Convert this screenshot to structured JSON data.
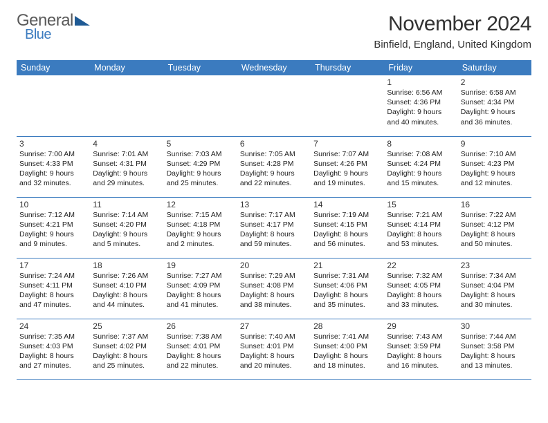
{
  "header": {
    "logo": {
      "word1": "General",
      "word2": "Blue",
      "word1_color": "#5a5a5a",
      "word2_color": "#3b7bbf",
      "triangle_color": "#1f5a94"
    },
    "month_title": "November 2024",
    "location": "Binfield, England, United Kingdom"
  },
  "styling": {
    "header_bg": "#3b7bbf",
    "header_text": "#ffffff",
    "rule_color": "#3b7bbf",
    "blank_row_bg": "#f0f0f0",
    "body_text": "#222222",
    "daynum_color": "#333333",
    "font_family": "Arial",
    "day_header_fontsize": 12.5,
    "cell_fontsize": 10.5,
    "title_fontsize": 30,
    "location_fontsize": 15
  },
  "day_headers": [
    "Sunday",
    "Monday",
    "Tuesday",
    "Wednesday",
    "Thursday",
    "Friday",
    "Saturday"
  ],
  "weeks": [
    [
      null,
      null,
      null,
      null,
      null,
      {
        "n": "1",
        "sunrise": "6:56 AM",
        "sunset": "4:36 PM",
        "daylight": "9 hours and 40 minutes."
      },
      {
        "n": "2",
        "sunrise": "6:58 AM",
        "sunset": "4:34 PM",
        "daylight": "9 hours and 36 minutes."
      }
    ],
    [
      {
        "n": "3",
        "sunrise": "7:00 AM",
        "sunset": "4:33 PM",
        "daylight": "9 hours and 32 minutes."
      },
      {
        "n": "4",
        "sunrise": "7:01 AM",
        "sunset": "4:31 PM",
        "daylight": "9 hours and 29 minutes."
      },
      {
        "n": "5",
        "sunrise": "7:03 AM",
        "sunset": "4:29 PM",
        "daylight": "9 hours and 25 minutes."
      },
      {
        "n": "6",
        "sunrise": "7:05 AM",
        "sunset": "4:28 PM",
        "daylight": "9 hours and 22 minutes."
      },
      {
        "n": "7",
        "sunrise": "7:07 AM",
        "sunset": "4:26 PM",
        "daylight": "9 hours and 19 minutes."
      },
      {
        "n": "8",
        "sunrise": "7:08 AM",
        "sunset": "4:24 PM",
        "daylight": "9 hours and 15 minutes."
      },
      {
        "n": "9",
        "sunrise": "7:10 AM",
        "sunset": "4:23 PM",
        "daylight": "9 hours and 12 minutes."
      }
    ],
    [
      {
        "n": "10",
        "sunrise": "7:12 AM",
        "sunset": "4:21 PM",
        "daylight": "9 hours and 9 minutes."
      },
      {
        "n": "11",
        "sunrise": "7:14 AM",
        "sunset": "4:20 PM",
        "daylight": "9 hours and 5 minutes."
      },
      {
        "n": "12",
        "sunrise": "7:15 AM",
        "sunset": "4:18 PM",
        "daylight": "9 hours and 2 minutes."
      },
      {
        "n": "13",
        "sunrise": "7:17 AM",
        "sunset": "4:17 PM",
        "daylight": "8 hours and 59 minutes."
      },
      {
        "n": "14",
        "sunrise": "7:19 AM",
        "sunset": "4:15 PM",
        "daylight": "8 hours and 56 minutes."
      },
      {
        "n": "15",
        "sunrise": "7:21 AM",
        "sunset": "4:14 PM",
        "daylight": "8 hours and 53 minutes."
      },
      {
        "n": "16",
        "sunrise": "7:22 AM",
        "sunset": "4:12 PM",
        "daylight": "8 hours and 50 minutes."
      }
    ],
    [
      {
        "n": "17",
        "sunrise": "7:24 AM",
        "sunset": "4:11 PM",
        "daylight": "8 hours and 47 minutes."
      },
      {
        "n": "18",
        "sunrise": "7:26 AM",
        "sunset": "4:10 PM",
        "daylight": "8 hours and 44 minutes."
      },
      {
        "n": "19",
        "sunrise": "7:27 AM",
        "sunset": "4:09 PM",
        "daylight": "8 hours and 41 minutes."
      },
      {
        "n": "20",
        "sunrise": "7:29 AM",
        "sunset": "4:08 PM",
        "daylight": "8 hours and 38 minutes."
      },
      {
        "n": "21",
        "sunrise": "7:31 AM",
        "sunset": "4:06 PM",
        "daylight": "8 hours and 35 minutes."
      },
      {
        "n": "22",
        "sunrise": "7:32 AM",
        "sunset": "4:05 PM",
        "daylight": "8 hours and 33 minutes."
      },
      {
        "n": "23",
        "sunrise": "7:34 AM",
        "sunset": "4:04 PM",
        "daylight": "8 hours and 30 minutes."
      }
    ],
    [
      {
        "n": "24",
        "sunrise": "7:35 AM",
        "sunset": "4:03 PM",
        "daylight": "8 hours and 27 minutes."
      },
      {
        "n": "25",
        "sunrise": "7:37 AM",
        "sunset": "4:02 PM",
        "daylight": "8 hours and 25 minutes."
      },
      {
        "n": "26",
        "sunrise": "7:38 AM",
        "sunset": "4:01 PM",
        "daylight": "8 hours and 22 minutes."
      },
      {
        "n": "27",
        "sunrise": "7:40 AM",
        "sunset": "4:01 PM",
        "daylight": "8 hours and 20 minutes."
      },
      {
        "n": "28",
        "sunrise": "7:41 AM",
        "sunset": "4:00 PM",
        "daylight": "8 hours and 18 minutes."
      },
      {
        "n": "29",
        "sunrise": "7:43 AM",
        "sunset": "3:59 PM",
        "daylight": "8 hours and 16 minutes."
      },
      {
        "n": "30",
        "sunrise": "7:44 AM",
        "sunset": "3:58 PM",
        "daylight": "8 hours and 13 minutes."
      }
    ]
  ],
  "labels": {
    "sunrise": "Sunrise:",
    "sunset": "Sunset:",
    "daylight": "Daylight:"
  }
}
